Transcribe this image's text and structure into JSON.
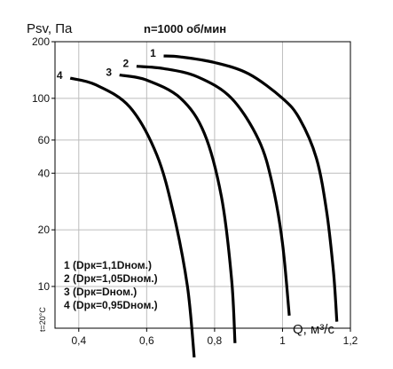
{
  "chart_data": {
    "type": "line",
    "title": "n=1000 об/мин",
    "ylabel": "Psv, Па",
    "xlabel": "Q, м³/с",
    "note": "t=20°C",
    "y_scale": "log",
    "xlim": [
      0.33,
      1.2
    ],
    "ylim": [
      6,
      200
    ],
    "x_ticks": [
      0.4,
      0.6,
      0.8,
      1,
      1.2
    ],
    "x_tick_labels": [
      "0,4",
      "0,6",
      "0,8",
      "1",
      "1,2"
    ],
    "y_ticks": [
      10,
      20,
      40,
      60,
      100,
      200
    ],
    "y_tick_labels": [
      "10",
      "20",
      "40",
      "60",
      "100",
      "200"
    ],
    "grid": true,
    "legend_position": "bottom-left",
    "legend": [
      "1 (Dрк=1,1Dном.)",
      "2 (Dрк=1,05Dном.)",
      "3 (Dрк=Dном.)",
      "4 (Dрк=0,95Dном.)"
    ],
    "series": [
      {
        "name": "1",
        "x": [
          0.65,
          0.7,
          0.8,
          0.9,
          1.0,
          1.05,
          1.1,
          1.13,
          1.15,
          1.16
        ],
        "y": [
          168,
          166,
          155,
          135,
          100,
          78,
          48,
          25,
          12,
          6.5
        ]
      },
      {
        "name": "2",
        "x": [
          0.57,
          0.65,
          0.75,
          0.85,
          0.93,
          0.97,
          1.0,
          1.02
        ],
        "y": [
          148,
          144,
          130,
          100,
          60,
          35,
          17,
          7
        ]
      },
      {
        "name": "3",
        "x": [
          0.52,
          0.6,
          0.7,
          0.77,
          0.82,
          0.85,
          0.86
        ],
        "y": [
          133,
          125,
          100,
          65,
          30,
          11,
          5
        ]
      },
      {
        "name": "4",
        "x": [
          0.375,
          0.45,
          0.55,
          0.63,
          0.68,
          0.72,
          0.74
        ],
        "y": [
          128,
          118,
          90,
          50,
          24,
          10,
          4.2
        ]
      }
    ]
  }
}
